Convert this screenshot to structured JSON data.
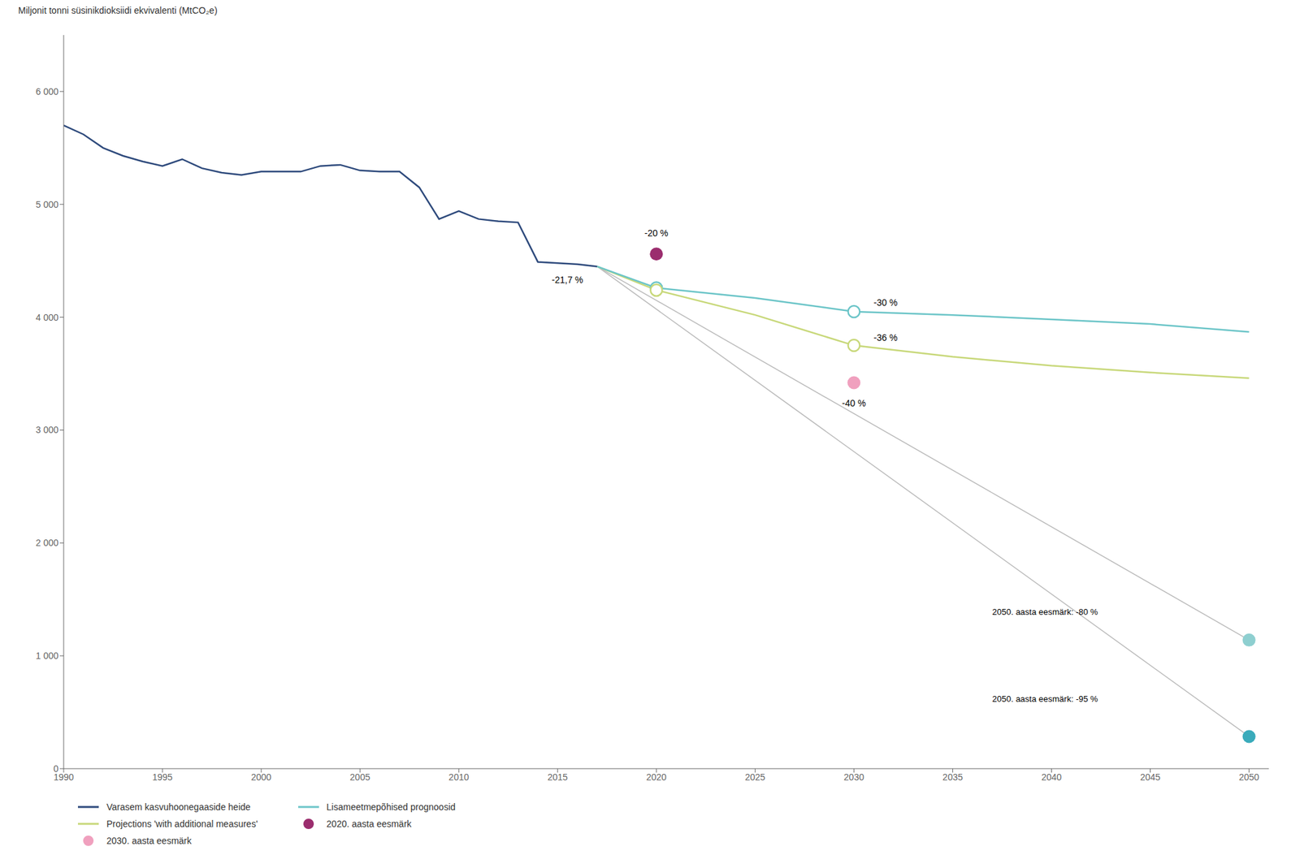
{
  "chart_data": {
    "type": "line",
    "ylabel": "Miljonit tonni süsinikdioksiidi ekvivalenti (MtCO₂e)",
    "xlim": [
      1990,
      2051
    ],
    "ylim": [
      0,
      6500
    ],
    "xticks": [
      1990,
      1995,
      2000,
      2005,
      2010,
      2015,
      2020,
      2025,
      2030,
      2035,
      2040,
      2045,
      2050
    ],
    "yticks": [
      0,
      {
        "value": 1000,
        "label": "1 000"
      },
      {
        "value": 2000,
        "label": "2 000"
      },
      {
        "value": 3000,
        "label": "3 000"
      },
      {
        "value": 4000,
        "label": "4 000"
      },
      {
        "value": 5000,
        "label": "5 000"
      },
      {
        "value": 6000,
        "label": "6 000"
      }
    ],
    "grid": false,
    "legend": "bottom",
    "series": [
      {
        "name": "Varasem kasvuhoonegaaside heide",
        "type": "line",
        "color": "#2E4A7C",
        "x": [
          1990,
          1991,
          1992,
          1993,
          1994,
          1995,
          1996,
          1997,
          1998,
          1999,
          2000,
          2001,
          2002,
          2003,
          2004,
          2005,
          2006,
          2007,
          2008,
          2009,
          2010,
          2011,
          2012,
          2013,
          2014,
          2015,
          2016,
          2017
        ],
        "values": [
          5700,
          5620,
          5500,
          5430,
          5380,
          5340,
          5400,
          5320,
          5280,
          5260,
          5290,
          5290,
          5290,
          5340,
          5350,
          5300,
          5290,
          5290,
          5150,
          4870,
          4940,
          4870,
          4850,
          4840,
          4490,
          4480,
          4470,
          4450
        ]
      },
      {
        "name": "Lisameetmepõhised prognoosid",
        "type": "line",
        "color": "#6CC5C8",
        "x": [
          2017,
          2020,
          2025,
          2030,
          2035,
          2040,
          2045,
          2050
        ],
        "values": [
          4450,
          4260,
          4170,
          4050,
          4020,
          3980,
          3940,
          3870
        ]
      },
      {
        "name": "Projections 'with additional measures'",
        "type": "line",
        "color": "#C8D87A",
        "x": [
          2017,
          2020,
          2025,
          2030,
          2035,
          2040,
          2045,
          2050
        ],
        "values": [
          4450,
          4240,
          4020,
          3750,
          3650,
          3570,
          3510,
          3460
        ]
      },
      {
        "name": "2020. aasta eesmärk",
        "type": "scatter",
        "marker": "circle",
        "color": "#9B2D6E",
        "x": [
          2020
        ],
        "values": [
          4560
        ]
      },
      {
        "name": "2030. aasta eesmärk",
        "type": "scatter",
        "marker": "circle",
        "color": "#F0A0BE",
        "x": [
          2030
        ],
        "values": [
          3420
        ]
      },
      {
        "type": "line",
        "color": "#BBBBBB",
        "x": [
          2017,
          2050
        ],
        "values": [
          4450,
          1140
        ]
      },
      {
        "type": "line",
        "color": "#BBBBBB",
        "x": [
          2017,
          2050
        ],
        "values": [
          4450,
          285
        ]
      },
      {
        "type": "scatter",
        "marker": "open",
        "color": "#6CC5C8",
        "x": [
          2020,
          2030
        ],
        "values": [
          4260,
          4050
        ]
      },
      {
        "type": "scatter",
        "marker": "open",
        "color": "#C8D87A",
        "x": [
          2020,
          2030
        ],
        "values": [
          4240,
          3750
        ]
      },
      {
        "type": "scatter",
        "marker": "circle",
        "color": "#8ECFD0",
        "x": [
          2050
        ],
        "values": [
          1140
        ]
      },
      {
        "type": "scatter",
        "marker": "circle",
        "color": "#3AABBB",
        "x": [
          2050
        ],
        "values": [
          285
        ]
      }
    ],
    "annotations": [
      {
        "text": "-20 %",
        "x": 2020,
        "y": 4700
      },
      {
        "text": "-21,7 %",
        "x": 2015.5,
        "y": 4360
      },
      {
        "text": "-30 %",
        "x": 2031,
        "y": 4130
      },
      {
        "text": "-36 %",
        "x": 2031,
        "y": 3820
      },
      {
        "text": "-40 %",
        "x": 2030,
        "y": 3270
      },
      {
        "text": "2050. aasta eesmärk: -80 %",
        "x": 2037,
        "y": 1390
      },
      {
        "text": "2050. aasta eesmärk: -95 %",
        "x": 2037,
        "y": 620
      }
    ]
  }
}
